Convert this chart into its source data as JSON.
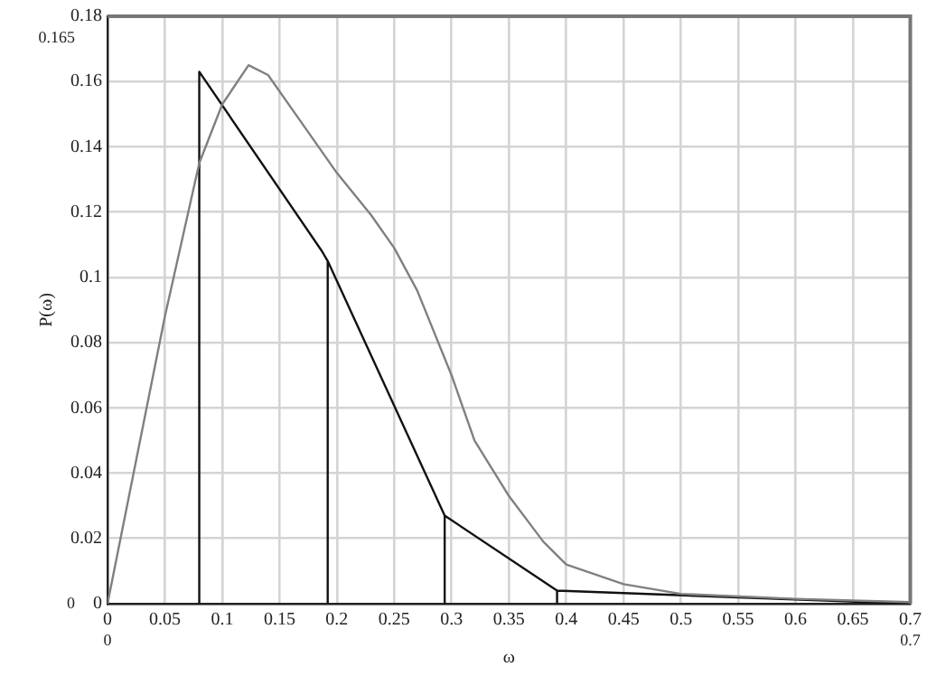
{
  "chart_data": {
    "type": "line",
    "xlabel": "ω",
    "ylabel": "P(ω)",
    "xlim": [
      0,
      0.7
    ],
    "ylim": [
      0,
      0.18
    ],
    "xticks": [
      0,
      0.05,
      0.1,
      0.15,
      0.2,
      0.25,
      0.3,
      0.35,
      0.4,
      0.45,
      0.5,
      0.55,
      0.6,
      0.65,
      0.7
    ],
    "yticks": [
      0,
      0.02,
      0.04,
      0.06,
      0.08,
      0.1,
      0.12,
      0.14,
      0.16,
      0.18
    ],
    "grid": true,
    "legend": false,
    "marker": "none",
    "line_style": "solid",
    "annotations": [
      "0.165",
      "0",
      "0",
      "0.7"
    ],
    "series": [
      {
        "color": "#808080",
        "x": [
          0,
          0.05,
          0.08,
          0.1,
          0.123,
          0.14,
          0.16,
          0.2,
          0.23,
          0.25,
          0.27,
          0.3,
          0.32,
          0.35,
          0.38,
          0.4,
          0.45,
          0.5,
          0.6,
          0.7
        ],
        "values": [
          0,
          0.088,
          0.135,
          0.153,
          0.165,
          0.162,
          0.152,
          0.132,
          0.119,
          0.109,
          0.096,
          0.07,
          0.05,
          0.033,
          0.019,
          0.012,
          0.006,
          0.003,
          0.0015,
          0.0005
        ]
      },
      {
        "color": "#111111",
        "x": [
          0.08,
          0.08,
          0.187,
          0.192,
          0.192,
          0.192,
          0.294,
          0.294,
          0.294,
          0.392,
          0.392,
          0.392,
          0.7
        ],
        "values": [
          0,
          0.163,
          0.108,
          0.105,
          0,
          0.105,
          0.027,
          0,
          0.027,
          0.004,
          0,
          0.004,
          0
        ]
      }
    ]
  }
}
